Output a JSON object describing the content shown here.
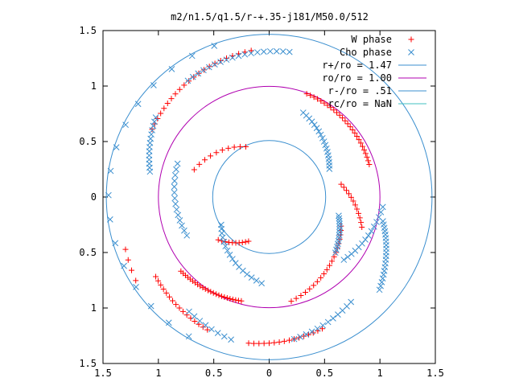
{
  "chart_data": {
    "type": "scatter",
    "title": "m2/n1.5/q1.5/r-+.35-j181/M50.0/512",
    "xlabel": "",
    "ylabel": "",
    "xlim": [
      -1.5,
      1.5
    ],
    "ylim": [
      -1.5,
      1.5
    ],
    "x_ticks": [
      -1.5,
      -1,
      -0.5,
      0,
      0.5,
      1,
      1.5
    ],
    "x_tick_labels": [
      "1.5",
      "1",
      "0.5",
      "0",
      "0.5",
      "1",
      "1.5"
    ],
    "y_ticks": [
      1.5,
      1,
      0.5,
      0,
      -0.5,
      -1,
      -1.5
    ],
    "y_tick_labels": [
      "1.5",
      "1",
      "0.5",
      "0",
      "0.5",
      "1",
      "1.5"
    ],
    "grid": false,
    "legend_position": "top-right",
    "series": [
      {
        "name": "W phase",
        "kind": "points",
        "marker": "plus",
        "color": "#ff0000"
      },
      {
        "name": "Cho phase",
        "kind": "points",
        "marker": "cross",
        "color": "#3b8fcf"
      },
      {
        "name": "r+/ro = 1.47",
        "kind": "circle",
        "radius": 1.47,
        "color": "#3b8fcf"
      },
      {
        "name": "ro/ro = 1.00",
        "kind": "circle",
        "radius": 1.0,
        "color": "#b000b0"
      },
      {
        "name": "r-/ro = .51",
        "kind": "circle",
        "radius": 0.51,
        "color": "#3b8fcf"
      },
      {
        "name": "rc/ro = NaN",
        "kind": "circle",
        "radius": null,
        "color": "#40c0c0"
      }
    ],
    "arms": [
      {
        "series": 0,
        "r1": 1.33,
        "r2": 1.22,
        "a1": 97,
        "a2": 150,
        "n": 22
      },
      {
        "series": 0,
        "r1": 0.99,
        "r2": 0.95,
        "a1": 70,
        "a2": 18,
        "n": 26
      },
      {
        "series": 0,
        "r1": 0.5,
        "r2": 0.72,
        "a1": 115,
        "a2": 160,
        "n": 10
      },
      {
        "series": 0,
        "r1": 0.66,
        "r2": 0.88,
        "a1": 10,
        "a2": -18,
        "n": 12
      },
      {
        "series": 0,
        "r1": 0.97,
        "r2": 1.04,
        "a1": -105,
        "a2": -140,
        "n": 24
      },
      {
        "series": 0,
        "r1": 0.96,
        "r2": 0.7,
        "a1": -78,
        "a2": -22,
        "n": 20
      },
      {
        "series": 0,
        "r1": 0.6,
        "r2": 0.44,
        "a1": -140,
        "a2": -115,
        "n": 10
      },
      {
        "series": 0,
        "r1": 1.33,
        "r2": 1.28,
        "a1": -98,
        "a2": -68,
        "n": 16
      },
      {
        "series": 0,
        "r1": 1.32,
        "r2": 1.25,
        "a1": -115,
        "a2": -145,
        "n": 16
      },
      {
        "series": 0,
        "r1": 1.38,
        "r2": 1.42,
        "a1": 200,
        "a2": 212,
        "n": 4
      },
      {
        "series": 1,
        "r1": 1.32,
        "r2": 1.28,
        "a1": 82,
        "a2": 125,
        "n": 18
      },
      {
        "series": 1,
        "r1": 1.25,
        "r2": 1.1,
        "a1": 145,
        "a2": 168,
        "n": 14
      },
      {
        "series": 1,
        "r1": 0.82,
        "r2": 0.6,
        "a1": 68,
        "a2": 25,
        "n": 18
      },
      {
        "series": 1,
        "r1": 0.88,
        "r2": 0.82,
        "a1": 160,
        "a2": 205,
        "n": 14
      },
      {
        "series": 1,
        "r1": 0.65,
        "r2": 0.78,
        "a1": -15,
        "a2": -40,
        "n": 14
      },
      {
        "series": 1,
        "r1": 0.88,
        "r2": 1.03,
        "a1": -40,
        "a2": -5,
        "n": 14
      },
      {
        "series": 1,
        "r1": 1.05,
        "r2": 1.3,
        "a1": -12,
        "a2": -40,
        "n": 20
      },
      {
        "series": 1,
        "r1": 1.2,
        "r2": 1.3,
        "a1": -52,
        "a2": -80,
        "n": 12
      },
      {
        "series": 1,
        "r1": 0.5,
        "r2": 0.78,
        "a1": -150,
        "a2": -95,
        "n": 16
      },
      {
        "series": 1,
        "r1": 1.33,
        "r2": 1.26,
        "a1": -105,
        "a2": -125,
        "n": 8
      },
      {
        "series": 1,
        "r1": 1.45,
        "r2": 1.45,
        "a1": 110,
        "a2": 240,
        "n": 16
      }
    ]
  }
}
